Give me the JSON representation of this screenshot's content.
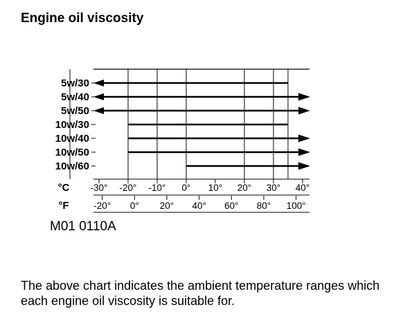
{
  "page": {
    "title": "Engine oil viscosity",
    "figure_code": "M01 0110A",
    "caption": "The above chart indicates the ambient temperature ranges which each engine oil viscosity is suitable for."
  },
  "chart_data": {
    "type": "range",
    "title": "",
    "xlabel": "",
    "ylabel": "",
    "x_unit": "°C",
    "xlim_c": [
      -40,
      45
    ],
    "scales": [
      {
        "unit": "°C",
        "ticks": [
          -30,
          -20,
          -10,
          0,
          10,
          20,
          30,
          40
        ],
        "labels": [
          "-30°",
          "-20°",
          "-10°",
          "0°",
          "10°",
          "20°",
          "30°",
          "40°"
        ]
      },
      {
        "unit": "°F",
        "ticks": [
          -20,
          0,
          20,
          40,
          60,
          80,
          100
        ],
        "labels": [
          "-20°",
          "0°",
          "20°",
          "40°",
          "60°",
          "80°",
          "100°"
        ]
      }
    ],
    "gridlines_c": [
      -40,
      -20,
      -10,
      0,
      20,
      30,
      35
    ],
    "series": [
      {
        "name": "5w/30",
        "from_c": null,
        "to_c": 35,
        "arrow_left": true,
        "arrow_right": false
      },
      {
        "name": "5w/40",
        "from_c": null,
        "to_c": null,
        "arrow_left": true,
        "arrow_right": true
      },
      {
        "name": "5w/50",
        "from_c": null,
        "to_c": null,
        "arrow_left": true,
        "arrow_right": true
      },
      {
        "name": "10w/30",
        "from_c": -20,
        "to_c": 35,
        "arrow_left": false,
        "arrow_right": false
      },
      {
        "name": "10w/40",
        "from_c": -20,
        "to_c": null,
        "arrow_left": false,
        "arrow_right": true
      },
      {
        "name": "10w/50",
        "from_c": -20,
        "to_c": null,
        "arrow_left": false,
        "arrow_right": true
      },
      {
        "name": "10w/60",
        "from_c": 0,
        "to_c": null,
        "arrow_left": false,
        "arrow_right": true
      }
    ]
  }
}
